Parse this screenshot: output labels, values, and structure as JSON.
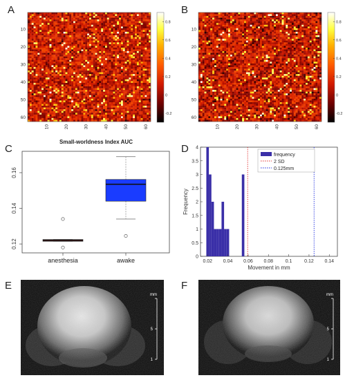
{
  "panels": {
    "A": "A",
    "B": "B",
    "C": "C",
    "D": "D",
    "E": "E",
    "F": "F"
  },
  "chart_data": [
    {
      "panel": "A",
      "type": "heatmap",
      "description_rows": 62,
      "y_ticks": [
        "10",
        "20",
        "30",
        "40",
        "50",
        "60"
      ],
      "x_ticks": [
        "10",
        "20",
        "30",
        "40",
        "50",
        "60"
      ],
      "colorbar_ticks": [
        "0.8",
        "0.6",
        "0.4",
        "0.2",
        "0",
        "-0.2"
      ],
      "value_range": [
        -0.3,
        0.9
      ],
      "colormap": [
        "#000000",
        "#6e0000",
        "#d21a00",
        "#ff5a00",
        "#ffb000",
        "#ffff40",
        "#ffffff"
      ]
    },
    {
      "panel": "B",
      "type": "heatmap",
      "y_ticks": [
        "10",
        "20",
        "30",
        "40",
        "50",
        "60"
      ],
      "x_ticks": [
        "10",
        "20",
        "30",
        "40",
        "50",
        "60"
      ],
      "colorbar_ticks": [
        "0.8",
        "0.6",
        "0.4",
        "0.2",
        "0",
        "-0.2"
      ],
      "value_range": [
        -0.3,
        0.9
      ]
    },
    {
      "panel": "C",
      "type": "box",
      "title": "Small-worldness Index AUC",
      "categories": [
        "anesthesia",
        "awake"
      ],
      "ylim": [
        0.115,
        0.172
      ],
      "y_ticks": [
        "0.12",
        "0.14",
        "0.16"
      ],
      "boxes": [
        {
          "name": "anesthesia",
          "color": "#8b1a1a",
          "q1": 0.1215,
          "median": 0.122,
          "q3": 0.1225,
          "whisker_low": 0.1215,
          "whisker_high": 0.1225,
          "outliers": [
            0.118,
            0.134
          ]
        },
        {
          "name": "awake",
          "color": "#1a3cff",
          "q1": 0.144,
          "median": 0.1535,
          "q3": 0.1562,
          "whisker_low": 0.134,
          "whisker_high": 0.169,
          "outliers": [
            0.1245
          ]
        }
      ]
    },
    {
      "panel": "D",
      "type": "bar",
      "xlabel": "Movement in mm",
      "ylabel": "Frequency",
      "x_ticks": [
        "0.02",
        "0.04",
        "0.06",
        "0.08",
        "0.1",
        "0.12",
        "0.14"
      ],
      "y_ticks": [
        "0",
        "0.5",
        "1",
        "1.5",
        "2",
        "2.5",
        "3",
        "3.5",
        "4"
      ],
      "xlim": [
        0.013,
        0.148
      ],
      "ylim": [
        0,
        4
      ],
      "bar_width": 0.0025,
      "bars": [
        {
          "x": 0.02,
          "value": 4
        },
        {
          "x": 0.0225,
          "value": 3
        },
        {
          "x": 0.025,
          "value": 2
        },
        {
          "x": 0.0275,
          "value": 1
        },
        {
          "x": 0.03,
          "value": 1
        },
        {
          "x": 0.0325,
          "value": 1
        },
        {
          "x": 0.035,
          "value": 2
        },
        {
          "x": 0.0375,
          "value": 1
        },
        {
          "x": 0.04,
          "value": 1
        },
        {
          "x": 0.055,
          "value": 3
        }
      ],
      "bar_color": "#3a2fa8",
      "lines": [
        {
          "name": "2 SD",
          "x": 0.0595,
          "color": "#e03030"
        },
        {
          "name": "0.125mm",
          "x": 0.125,
          "color": "#2030e0"
        }
      ],
      "legend": [
        "frequency",
        "2 SD",
        "0.125mm"
      ],
      "legend_position": "top-right"
    }
  ],
  "images": {
    "E": {
      "scale_label": "mm",
      "scale_ticks": [
        "5",
        "1"
      ]
    },
    "F": {
      "scale_label": "mm",
      "scale_ticks": [
        "5",
        "1"
      ]
    }
  }
}
